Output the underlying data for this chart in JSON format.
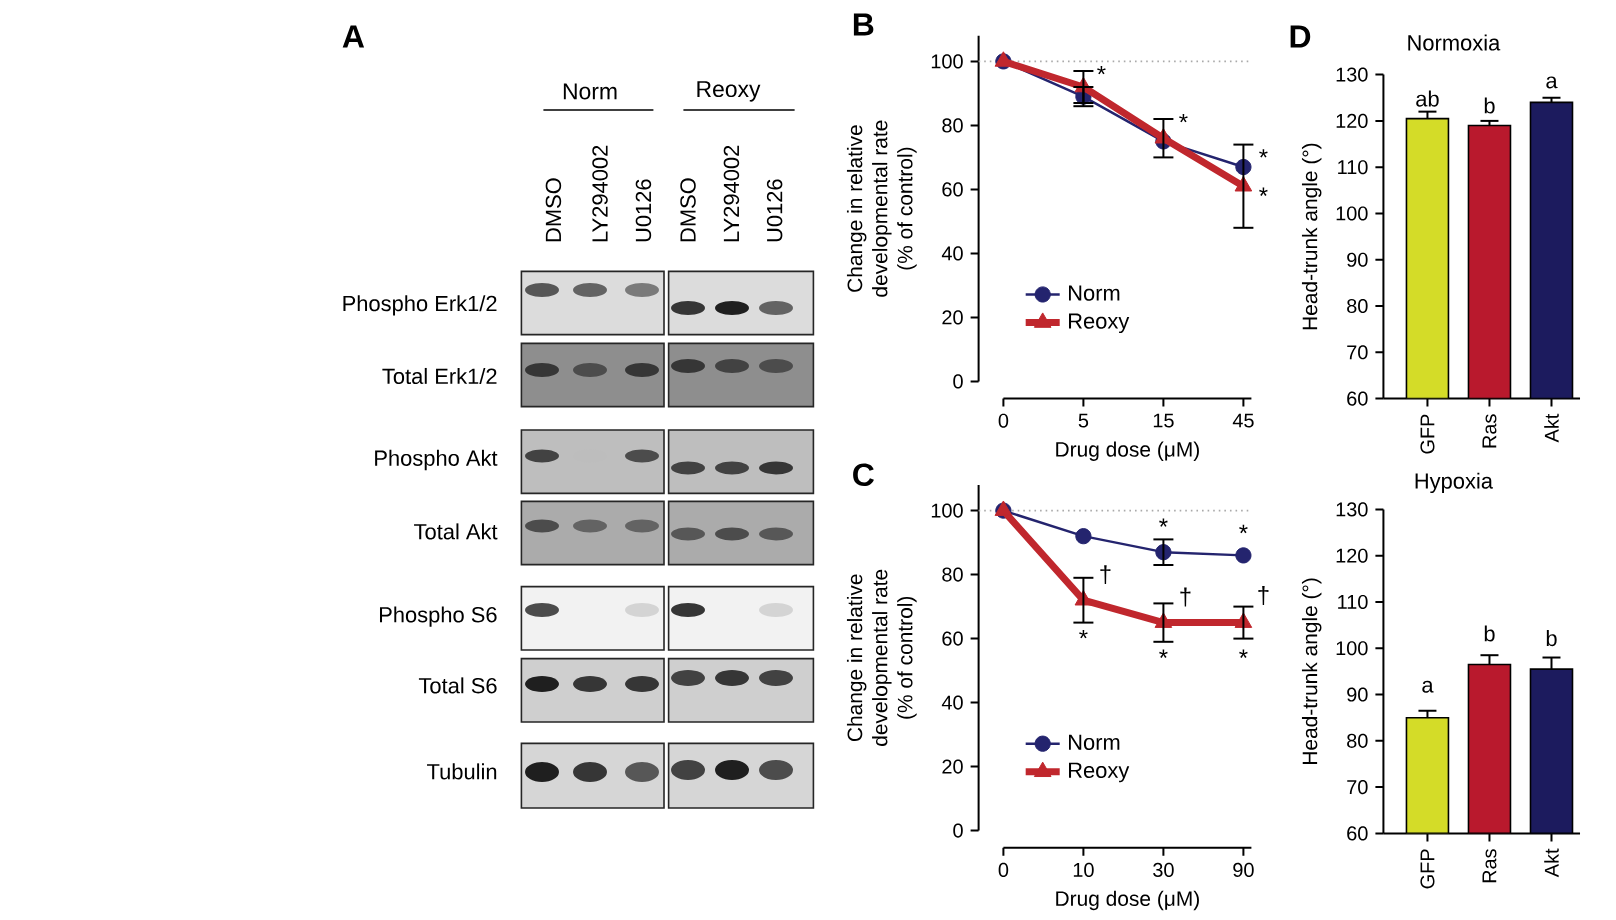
{
  "chart_data": [
    {
      "type": "other",
      "title": "A",
      "annotations": [
        "Norm",
        "Reoxy",
        "DMSO",
        "LY294002",
        "U0126",
        "DMSO",
        "LY294002",
        "U0126",
        "Phospho Erk1/2",
        "Total Erk1/2",
        "Phospho Akt",
        "Total Akt",
        "Phospho S6",
        "Total S6",
        "Tubulin"
      ]
    },
    {
      "type": "line",
      "title": "B",
      "xlabel": "Drug dose (μM)",
      "ylabel": "Change in relative developmental rate (% of control)",
      "categories": [
        "0",
        "5",
        "15",
        "45"
      ],
      "ylim": [
        0,
        108
      ],
      "yticks": [
        0,
        20,
        40,
        60,
        80,
        100
      ],
      "legend": "bottom left",
      "series": [
        {
          "name": "Norm",
          "color": "#24246e",
          "marker": "circle",
          "line_style": "solid",
          "values": [
            100,
            89,
            75,
            67
          ],
          "errors": [
            null,
            3,
            null,
            null
          ]
        },
        {
          "name": "Reoxy",
          "color": "#c0272d",
          "marker": "triangle",
          "line_style": "solid",
          "values": [
            100,
            92,
            76,
            61
          ],
          "errors": [
            null,
            5,
            6,
            13
          ]
        }
      ],
      "ref_lines": [
        {
          "axis": "y",
          "value": 100,
          "color": "#aaaaaa",
          "line_style": "dotted"
        }
      ],
      "annotations": [
        {
          "text": "*",
          "x": "5",
          "y": 96
        },
        {
          "text": "*",
          "x": "15",
          "y": 81
        },
        {
          "text": "*",
          "x": "45",
          "y": 70
        },
        {
          "text": "*",
          "x": "45",
          "y": 58
        }
      ]
    },
    {
      "type": "line",
      "title": "C",
      "xlabel": "Drug dose (μM)",
      "ylabel": "Change in relative developmental rate (% of control)",
      "categories": [
        "0",
        "10",
        "30",
        "90"
      ],
      "ylim": [
        0,
        108
      ],
      "yticks": [
        0,
        20,
        40,
        60,
        80,
        100
      ],
      "legend": "bottom left",
      "series": [
        {
          "name": "Norm",
          "color": "#24246e",
          "marker": "circle",
          "line_style": "solid",
          "values": [
            100,
            92,
            87,
            86
          ],
          "errors": [
            null,
            null,
            4,
            null
          ]
        },
        {
          "name": "Reoxy",
          "color": "#c0272d",
          "marker": "triangle",
          "line_style": "solid",
          "values": [
            100,
            72,
            65,
            65
          ],
          "errors": [
            null,
            7,
            6,
            5
          ]
        }
      ],
      "ref_lines": [
        {
          "axis": "y",
          "value": 100,
          "color": "#aaaaaa",
          "line_style": "dotted"
        }
      ],
      "annotations": [
        {
          "text": "†",
          "x": "10",
          "y": 80
        },
        {
          "text": "*",
          "x": "10",
          "y": 72
        },
        {
          "text": "*",
          "x": "30",
          "y": 87
        },
        {
          "text": "†",
          "x": "30",
          "y": 73
        },
        {
          "text": "*",
          "x": "30",
          "y": 65
        },
        {
          "text": "*",
          "x": "90",
          "y": 86
        },
        {
          "text": "†",
          "x": "90",
          "y": 65
        },
        {
          "text": "*",
          "x": "90",
          "y": 65
        }
      ]
    },
    {
      "type": "bar",
      "title": "Normoxia",
      "ylabel": "Head-trunk angle (°)",
      "categories": [
        "GFP",
        "Ras",
        "Akt"
      ],
      "values": [
        120.5,
        119,
        124
      ],
      "errors": [
        1.5,
        1,
        1
      ],
      "colors": [
        "#d4dc28",
        "#b9192d",
        "#1c1b5e"
      ],
      "ylim": [
        60,
        130
      ],
      "yticks": [
        60,
        70,
        80,
        90,
        100,
        110,
        120,
        130
      ],
      "annotations": [
        "D",
        {
          "text": "ab",
          "x": "GFP",
          "y": 120.5
        },
        {
          "text": "b",
          "x": "Ras",
          "y": 119
        },
        {
          "text": "a",
          "x": "Akt",
          "y": 124
        }
      ]
    },
    {
      "type": "bar",
      "title": "Hypoxia",
      "ylabel": "Head-trunk angle (°)",
      "categories": [
        "GFP",
        "Ras",
        "Akt"
      ],
      "values": [
        85,
        96.5,
        95.5
      ],
      "errors": [
        1.5,
        2,
        2.5
      ],
      "colors": [
        "#d4dc28",
        "#b9192d",
        "#1c1b5e"
      ],
      "ylim": [
        60,
        130
      ],
      "yticks": [
        60,
        70,
        80,
        90,
        100,
        110,
        120,
        130
      ],
      "annotations": [
        {
          "text": "a",
          "x": "GFP",
          "y": 85
        },
        {
          "text": "b",
          "x": "Ras",
          "y": 96.5
        },
        {
          "text": "b",
          "x": "Akt",
          "y": 95.5
        }
      ]
    }
  ]
}
